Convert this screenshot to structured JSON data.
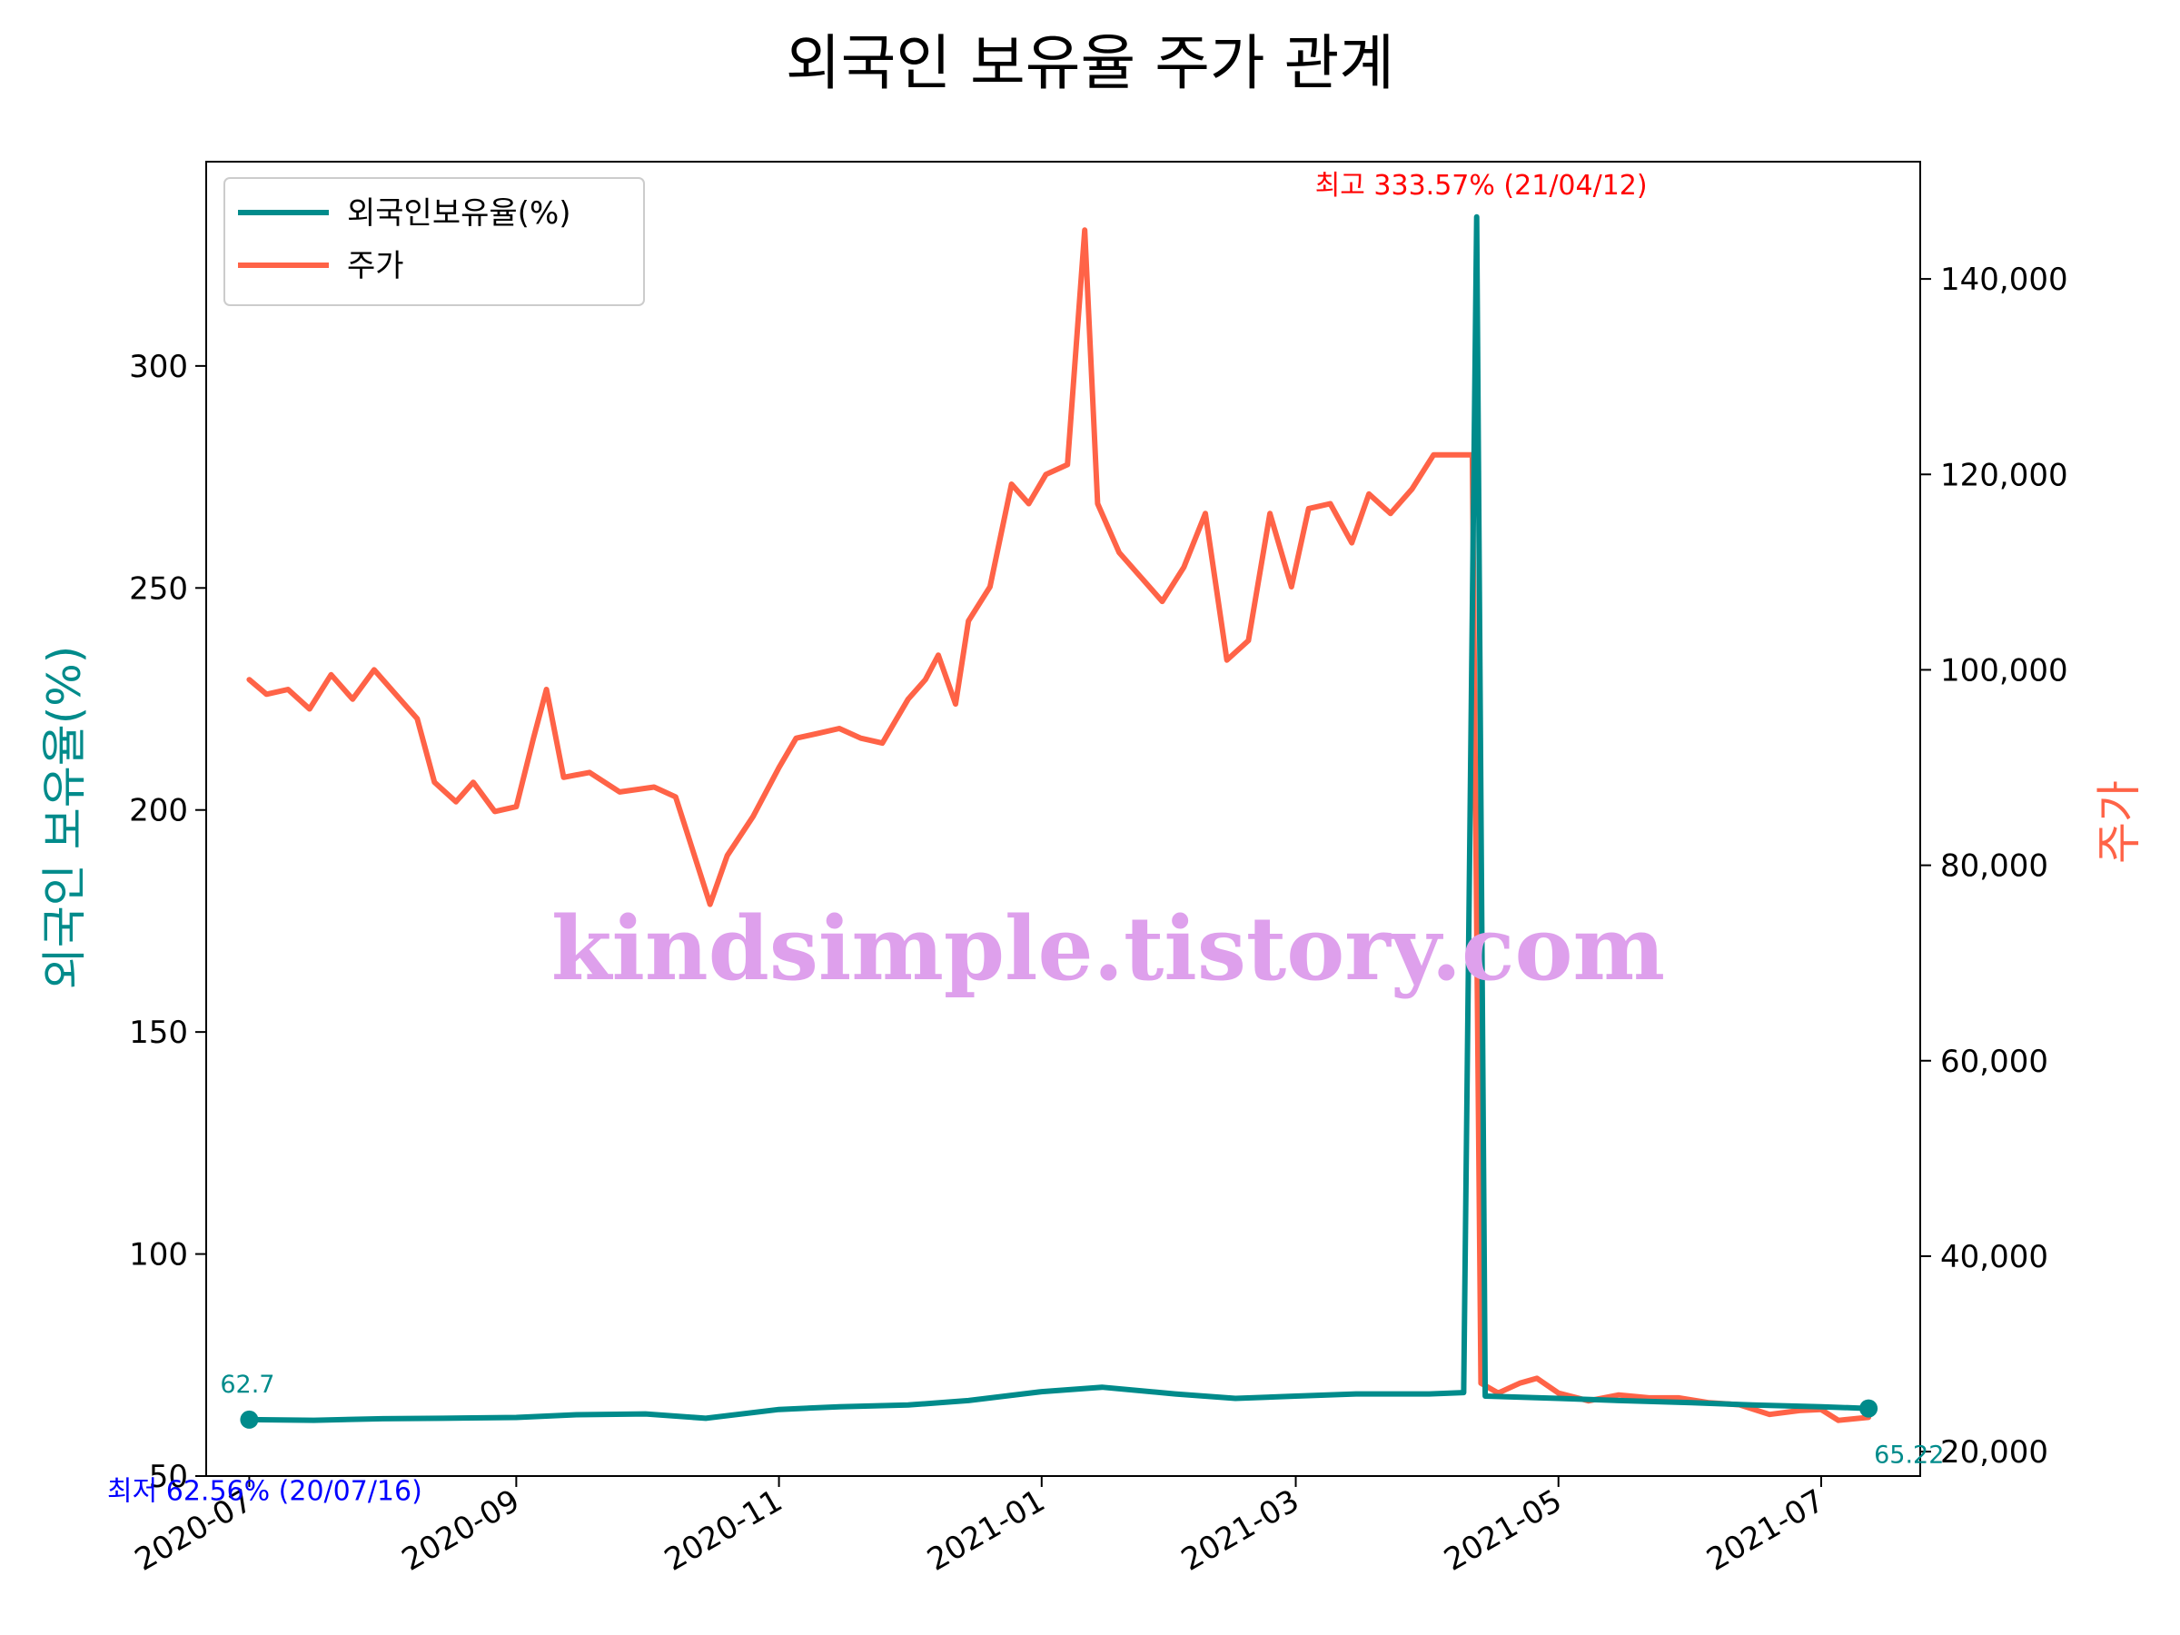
{
  "chart_data": {
    "type": "line",
    "title": "외국인 보유율 주가 관계",
    "ylabel_left": "외국인 보유율(%)",
    "ylabel_right": "주가",
    "x_ticks": [
      "2020-07",
      "2020-09",
      "2020-11",
      "2021-01",
      "2021-03",
      "2021-05",
      "2021-07"
    ],
    "y_left_ticks": [
      50,
      100,
      150,
      200,
      250,
      300
    ],
    "y_right_ticks": [
      "20,000",
      "40,000",
      "60,000",
      "80,000",
      "100,000",
      "120,000",
      "140,000"
    ],
    "y_left_range": [
      50,
      346
    ],
    "y_right_range": [
      17500,
      152000
    ],
    "x_range": [
      "2020-06-21",
      "2021-07-24"
    ],
    "legend": {
      "position": "upper-left",
      "entries": [
        "외국인보유율(%)",
        "주가"
      ]
    },
    "colors": {
      "ownership": "#008b8b",
      "price": "#ff6347",
      "max_annotation": "#ff0000",
      "min_annotation": "#0000ff",
      "watermark": "#dea0ec"
    },
    "series": [
      {
        "name": "외국인보유율(%)",
        "axis": "left",
        "points": [
          [
            "2020-07-01",
            62.7
          ],
          [
            "2020-07-16",
            62.56
          ],
          [
            "2020-08-01",
            62.9
          ],
          [
            "2020-08-15",
            63.0
          ],
          [
            "2020-09-01",
            63.2
          ],
          [
            "2020-09-15",
            63.8
          ],
          [
            "2020-10-01",
            64.0
          ],
          [
            "2020-10-15",
            63.0
          ],
          [
            "2020-11-01",
            65.0
          ],
          [
            "2020-11-15",
            65.6
          ],
          [
            "2020-12-01",
            66.0
          ],
          [
            "2020-12-15",
            67.0
          ],
          [
            "2021-01-01",
            69.0
          ],
          [
            "2021-01-15",
            70.0
          ],
          [
            "2021-02-01",
            68.5
          ],
          [
            "2021-02-15",
            67.5
          ],
          [
            "2021-03-01",
            68.0
          ],
          [
            "2021-03-15",
            68.5
          ],
          [
            "2021-04-01",
            68.5
          ],
          [
            "2021-04-09",
            68.8
          ],
          [
            "2021-04-12",
            333.57
          ],
          [
            "2021-04-14",
            68.0
          ],
          [
            "2021-05-01",
            67.5
          ],
          [
            "2021-05-15",
            67.0
          ],
          [
            "2021-06-01",
            66.5
          ],
          [
            "2021-06-15",
            66.0
          ],
          [
            "2021-07-01",
            65.6
          ],
          [
            "2021-07-12",
            65.22
          ]
        ]
      },
      {
        "name": "주가",
        "axis": "right",
        "points": [
          [
            "2020-07-01",
            99000
          ],
          [
            "2020-07-05",
            97500
          ],
          [
            "2020-07-10",
            98000
          ],
          [
            "2020-07-15",
            96000
          ],
          [
            "2020-07-20",
            99500
          ],
          [
            "2020-07-25",
            97000
          ],
          [
            "2020-07-30",
            100000
          ],
          [
            "2020-08-04",
            97500
          ],
          [
            "2020-08-09",
            95000
          ],
          [
            "2020-08-13",
            88500
          ],
          [
            "2020-08-18",
            86500
          ],
          [
            "2020-08-22",
            88500
          ],
          [
            "2020-08-27",
            85500
          ],
          [
            "2020-09-01",
            86000
          ],
          [
            "2020-09-05",
            93000
          ],
          [
            "2020-09-08",
            98000
          ],
          [
            "2020-09-12",
            89000
          ],
          [
            "2020-09-18",
            89500
          ],
          [
            "2020-09-25",
            87500
          ],
          [
            "2020-10-03",
            88000
          ],
          [
            "2020-10-08",
            87000
          ],
          [
            "2020-10-12",
            81500
          ],
          [
            "2020-10-16",
            76000
          ],
          [
            "2020-10-20",
            81000
          ],
          [
            "2020-10-26",
            85000
          ],
          [
            "2020-11-01",
            90000
          ],
          [
            "2020-11-05",
            93000
          ],
          [
            "2020-11-10",
            93500
          ],
          [
            "2020-11-15",
            94000
          ],
          [
            "2020-11-20",
            93000
          ],
          [
            "2020-11-25",
            92500
          ],
          [
            "2020-12-01",
            97000
          ],
          [
            "2020-12-05",
            99000
          ],
          [
            "2020-12-08",
            101500
          ],
          [
            "2020-12-12",
            96500
          ],
          [
            "2020-12-15",
            105000
          ],
          [
            "2020-12-20",
            108500
          ],
          [
            "2020-12-25",
            119000
          ],
          [
            "2020-12-29",
            117000
          ],
          [
            "2021-01-02",
            120000
          ],
          [
            "2021-01-07",
            121000
          ],
          [
            "2021-01-11",
            145000
          ],
          [
            "2021-01-14",
            117000
          ],
          [
            "2021-01-19",
            112000
          ],
          [
            "2021-01-24",
            109500
          ],
          [
            "2021-01-29",
            107000
          ],
          [
            "2021-02-03",
            110500
          ],
          [
            "2021-02-08",
            116000
          ],
          [
            "2021-02-13",
            101000
          ],
          [
            "2021-02-18",
            103000
          ],
          [
            "2021-02-23",
            116000
          ],
          [
            "2021-02-28",
            108500
          ],
          [
            "2021-03-04",
            116500
          ],
          [
            "2021-03-09",
            117000
          ],
          [
            "2021-03-14",
            113000
          ],
          [
            "2021-03-18",
            118000
          ],
          [
            "2021-03-23",
            116000
          ],
          [
            "2021-03-28",
            118500
          ],
          [
            "2021-04-02",
            122000
          ],
          [
            "2021-04-11",
            122000
          ],
          [
            "2021-04-13",
            27000
          ],
          [
            "2021-04-17",
            26000
          ],
          [
            "2021-04-22",
            27000
          ],
          [
            "2021-04-26",
            27500
          ],
          [
            "2021-05-01",
            26000
          ],
          [
            "2021-05-08",
            25200
          ],
          [
            "2021-05-15",
            25800
          ],
          [
            "2021-05-22",
            25500
          ],
          [
            "2021-05-29",
            25500
          ],
          [
            "2021-06-05",
            25000
          ],
          [
            "2021-06-12",
            24800
          ],
          [
            "2021-06-19",
            23800
          ],
          [
            "2021-06-26",
            24200
          ],
          [
            "2021-07-01",
            24300
          ],
          [
            "2021-07-05",
            23200
          ],
          [
            "2021-07-12",
            23500
          ]
        ]
      }
    ],
    "annotations": {
      "max": {
        "label": "최고 333.57% (21/04/12)",
        "date": "2021-04-12",
        "value": 333.57
      },
      "min": {
        "label": "최저 62.56% (20/07/16)",
        "date": "2020-07-16",
        "value": 62.56
      },
      "start": {
        "label": "62.7",
        "date": "2020-07-01",
        "value": 62.7
      },
      "end": {
        "label": "65.22",
        "date": "2021-07-12",
        "value": 65.22
      }
    },
    "watermark": "kindsimple.tistory.com"
  }
}
